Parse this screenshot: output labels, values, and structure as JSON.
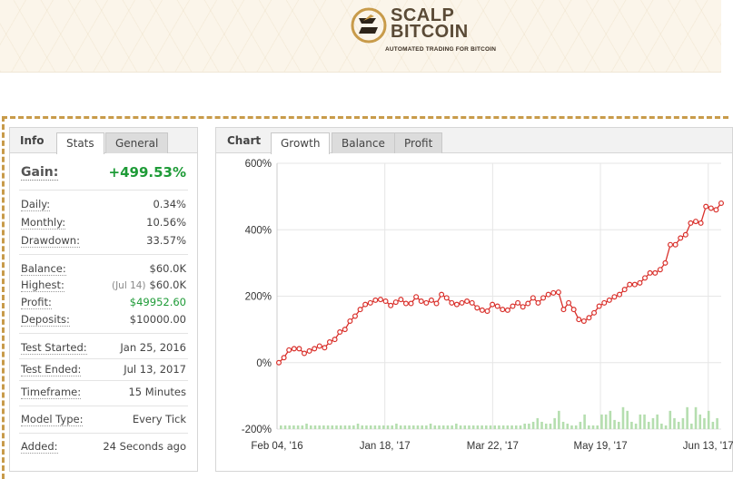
{
  "brand": {
    "name_line1": "SCALP",
    "name_line2": "BITCOIN",
    "tagline": "AUTOMATED TRADING FOR BITCOIN"
  },
  "info_panel": {
    "title": "Info",
    "tabs": [
      {
        "label": "Stats",
        "active": true
      },
      {
        "label": "General",
        "active": false
      }
    ],
    "gain": {
      "label": "Gain:",
      "value": "+499.53%"
    },
    "stats": [
      {
        "label": "Daily:",
        "value": "0.34%"
      },
      {
        "label": "Monthly:",
        "value": "10.56%"
      },
      {
        "label": "Drawdown:",
        "value": "33.57%"
      },
      {
        "label": "Balance:",
        "value": "$60.0K"
      },
      {
        "label": "Highest:",
        "sub": "(Jul 14)",
        "value": "$60.0K"
      },
      {
        "label": "Profit:",
        "value": "$49952.60"
      },
      {
        "label": "Deposits:",
        "value": "$10000.00"
      },
      {
        "label": "Test Started:",
        "value": "Jan 25, 2016"
      },
      {
        "label": "Test Ended:",
        "value": "Jul 13, 2017"
      },
      {
        "label": "Timeframe:",
        "value": "15 Minutes"
      },
      {
        "label": "Model Type:",
        "value": "Every Tick"
      },
      {
        "label": "Added:",
        "value": "24 Seconds ago"
      }
    ]
  },
  "chart_panel": {
    "title": "Chart",
    "tabs": [
      {
        "label": "Growth",
        "active": true
      },
      {
        "label": "Balance",
        "active": false
      },
      {
        "label": "Profit",
        "active": false
      }
    ]
  },
  "colors": {
    "growth_line": "#d9302b",
    "volume_bar": "#b5deaf",
    "profit_green": "#1e9b37",
    "accent_gold": "#c89b4a"
  },
  "chart_data": {
    "type": "line",
    "title": "",
    "xlabel": "",
    "ylabel": "",
    "ylim": [
      -200,
      600
    ],
    "y_ticks": [
      -200,
      0,
      200,
      400,
      600
    ],
    "y_tick_labels": [
      "-200%",
      "0%",
      "200%",
      "400%",
      "600%"
    ],
    "x_tick_labels": [
      "Feb 04, '16",
      "Jan 18, '17",
      "Mar 22, '17",
      "May 19, '17",
      "Jun 13, '17"
    ],
    "grid": true,
    "series": [
      {
        "values": [
          0,
          15,
          38,
          42,
          42,
          28,
          35,
          42,
          50,
          45,
          62,
          70,
          92,
          100,
          125,
          140,
          160,
          175,
          180,
          188,
          190,
          185,
          172,
          182,
          190,
          178,
          178,
          198,
          185,
          180,
          188,
          178,
          205,
          195,
          180,
          175,
          180,
          185,
          180,
          165,
          158,
          155,
          175,
          170,
          160,
          158,
          170,
          180,
          168,
          178,
          195,
          180,
          195,
          205,
          210,
          212,
          160,
          180,
          160,
          130,
          125,
          135,
          150,
          170,
          180,
          188,
          198,
          205,
          220,
          235,
          235,
          240,
          255,
          270,
          270,
          280,
          300,
          355,
          355,
          375,
          385,
          420,
          425,
          420,
          470,
          465,
          460,
          480
        ]
      },
      {
        "values": [
          20,
          20,
          20,
          20,
          20,
          20,
          30,
          20,
          20,
          20,
          20,
          20,
          20,
          20,
          20,
          20,
          20,
          20,
          30,
          20,
          20,
          20,
          20,
          20,
          20,
          20,
          20,
          30,
          20,
          20,
          20,
          20,
          20,
          20,
          20,
          30,
          20,
          20,
          20,
          20,
          20,
          30,
          20,
          20,
          20,
          20,
          20,
          20,
          20,
          20,
          20,
          20,
          20,
          20,
          20,
          20,
          20,
          30,
          30,
          40,
          60,
          40,
          30,
          30,
          60,
          100,
          40,
          30,
          20,
          20,
          40,
          80,
          20,
          20,
          20,
          80,
          80,
          100,
          50,
          40,
          120,
          100,
          40,
          30,
          80,
          80,
          40,
          60,
          80,
          30,
          20,
          100,
          60,
          40,
          60,
          120,
          30,
          120,
          80,
          60,
          100,
          40,
          60
        ]
      }
    ]
  }
}
